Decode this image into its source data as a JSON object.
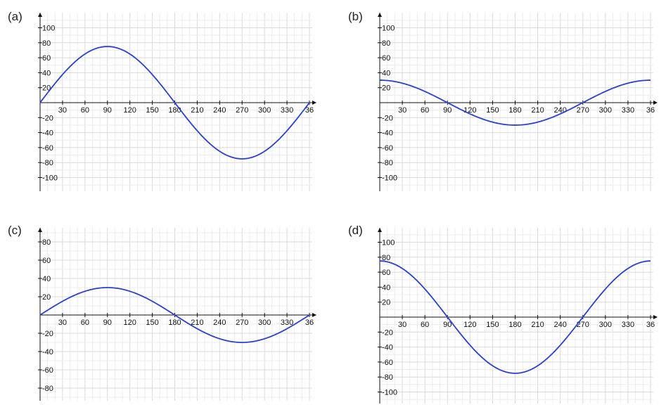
{
  "chart_data": [
    {
      "panel_label": "(a)",
      "type": "line",
      "function": "75*sin(x)",
      "amplitude": 75,
      "shape": "sine",
      "xlim": [
        0,
        360
      ],
      "ylim": [
        -110,
        110
      ],
      "x_ticks": [
        "30",
        "60",
        "90",
        "120",
        "150",
        "180",
        "210",
        "240",
        "270",
        "300",
        "330",
        "36"
      ],
      "y_ticks": [
        "100",
        "80",
        "60",
        "40",
        "20",
        "-20",
        "-40",
        "-60",
        "-80",
        "-100"
      ],
      "grid": true,
      "line_color": "#2a3fd6"
    },
    {
      "panel_label": "(b)",
      "type": "line",
      "function": "30*cos(x)",
      "amplitude": 30,
      "shape": "cosine",
      "xlim": [
        0,
        360
      ],
      "ylim": [
        -110,
        110
      ],
      "x_ticks": [
        "30",
        "60",
        "90",
        "120",
        "150",
        "180",
        "210",
        "240",
        "270",
        "300",
        "330",
        "36"
      ],
      "y_ticks": [
        "100",
        "80",
        "60",
        "40",
        "20",
        "-20",
        "-40",
        "-60",
        "-80",
        "-100"
      ],
      "grid": true,
      "line_color": "#2a3fd6"
    },
    {
      "panel_label": "(c)",
      "type": "line",
      "function": "30*sin(x)",
      "amplitude": 30,
      "shape": "sine",
      "xlim": [
        0,
        360
      ],
      "ylim": [
        -90,
        90
      ],
      "x_ticks": [
        "30",
        "60",
        "90",
        "120",
        "150",
        "180",
        "210",
        "240",
        "270",
        "300",
        "330",
        "36"
      ],
      "y_ticks": [
        "80",
        "60",
        "40",
        "20",
        "-20",
        "-40",
        "-60",
        "-80"
      ],
      "grid": true,
      "line_color": "#2a3fd6"
    },
    {
      "panel_label": "(d)",
      "type": "line",
      "function": "75*cos(x)",
      "amplitude": 75,
      "shape": "cosine",
      "xlim": [
        0,
        360
      ],
      "ylim": [
        -110,
        110
      ],
      "x_ticks": [
        "30",
        "60",
        "90",
        "120",
        "150",
        "180",
        "210",
        "240",
        "270",
        "300",
        "330",
        "36"
      ],
      "y_ticks": [
        "100",
        "80",
        "60",
        "40",
        "20",
        "-20",
        "-40",
        "-60",
        "-80",
        "-100"
      ],
      "grid": true,
      "line_color": "#2a3fd6"
    }
  ]
}
